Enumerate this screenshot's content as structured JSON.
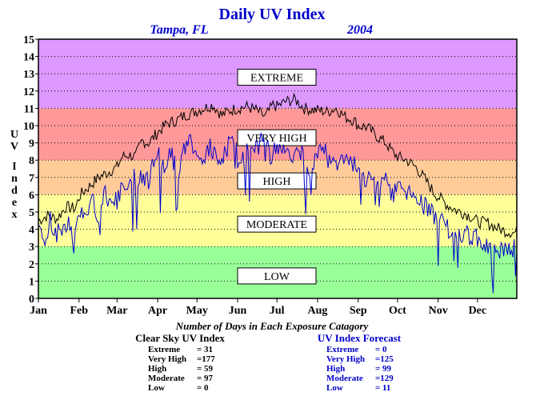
{
  "chart_data": {
    "type": "line",
    "title": "Daily UV Index",
    "location": "Tampa, FL",
    "year": "2004",
    "ylabel": "UV Index",
    "ylim": [
      0,
      15
    ],
    "yticks": [
      "0",
      "1",
      "2",
      "3",
      "4",
      "5",
      "6",
      "7",
      "8",
      "9",
      "10",
      "11",
      "12",
      "13",
      "14",
      "15"
    ],
    "xlim": [
      1,
      366
    ],
    "xticks": [
      {
        "label": "Jan",
        "day": 1
      },
      {
        "label": "Feb",
        "day": 32
      },
      {
        "label": "Mar",
        "day": 61
      },
      {
        "label": "Apr",
        "day": 92
      },
      {
        "label": "May",
        "day": 122
      },
      {
        "label": "Jun",
        "day": 153
      },
      {
        "label": "Jul",
        "day": 183
      },
      {
        "label": "Aug",
        "day": 214
      },
      {
        "label": "Sep",
        "day": 245
      },
      {
        "label": "Oct",
        "day": 275
      },
      {
        "label": "Nov",
        "day": 306
      },
      {
        "label": "Dec",
        "day": 336
      }
    ],
    "grid": true,
    "bands": [
      {
        "name": "LOW",
        "from": 0,
        "to": 3,
        "color": "#99ff99",
        "label_y": 1.3
      },
      {
        "name": "MODERATE",
        "from": 3,
        "to": 6,
        "color": "#ffff99",
        "label_y": 4.3
      },
      {
        "name": "HIGH",
        "from": 6,
        "to": 8,
        "color": "#ffcc99",
        "label_y": 6.8
      },
      {
        "name": "VERY HIGH",
        "from": 8,
        "to": 11,
        "color": "#ff9999",
        "label_y": 9.3
      },
      {
        "name": "EXTREME",
        "from": 11,
        "to": 15,
        "color": "#dd99ff",
        "label_y": 12.8
      }
    ],
    "series": [
      {
        "name": "Clear Sky UV Index",
        "color": "#000000",
        "points": [
          [
            1,
            4.5
          ],
          [
            8,
            4.8
          ],
          [
            15,
            4.6
          ],
          [
            22,
            5.3
          ],
          [
            29,
            5.2
          ],
          [
            33,
            6.0
          ],
          [
            40,
            6.5
          ],
          [
            47,
            7.0
          ],
          [
            54,
            7.3
          ],
          [
            61,
            7.6
          ],
          [
            65,
            8.2
          ],
          [
            70,
            8.3
          ],
          [
            75,
            8.2
          ],
          [
            80,
            9.1
          ],
          [
            85,
            9.0
          ],
          [
            92,
            9.6
          ],
          [
            99,
            10.1
          ],
          [
            106,
            10.3
          ],
          [
            113,
            10.6
          ],
          [
            120,
            10.8
          ],
          [
            127,
            11.0
          ],
          [
            134,
            11.2
          ],
          [
            141,
            10.6
          ],
          [
            148,
            10.9
          ],
          [
            153,
            11.0
          ],
          [
            160,
            11.1
          ],
          [
            167,
            10.9
          ],
          [
            174,
            10.5
          ],
          [
            180,
            11.2
          ],
          [
            183,
            11.1
          ],
          [
            190,
            11.4
          ],
          [
            197,
            11.5
          ],
          [
            204,
            11.0
          ],
          [
            211,
            10.9
          ],
          [
            214,
            10.9
          ],
          [
            221,
            10.8
          ],
          [
            228,
            11.0
          ],
          [
            235,
            10.5
          ],
          [
            242,
            10.3
          ],
          [
            245,
            10.0
          ],
          [
            252,
            9.9
          ],
          [
            259,
            9.4
          ],
          [
            266,
            9.0
          ],
          [
            272,
            8.4
          ],
          [
            275,
            8.2
          ],
          [
            282,
            8.0
          ],
          [
            289,
            7.6
          ],
          [
            296,
            6.9
          ],
          [
            303,
            6.1
          ],
          [
            306,
            5.9
          ],
          [
            313,
            5.4
          ],
          [
            320,
            5.1
          ],
          [
            327,
            4.9
          ],
          [
            334,
            4.6
          ],
          [
            336,
            4.4
          ],
          [
            343,
            4.4
          ],
          [
            350,
            4.1
          ],
          [
            357,
            3.9
          ],
          [
            364,
            3.8
          ],
          [
            366,
            3.9
          ]
        ]
      },
      {
        "name": "UV Index Forecast",
        "color": "#0000cc",
        "points": [
          [
            1,
            4.0
          ],
          [
            6,
            3.2
          ],
          [
            10,
            4.5
          ],
          [
            14,
            3.6
          ],
          [
            19,
            4.1
          ],
          [
            24,
            4.4
          ],
          [
            28,
            3.0
          ],
          [
            32,
            4.8
          ],
          [
            37,
            5.3
          ],
          [
            42,
            5.6
          ],
          [
            47,
            4.8
          ],
          [
            51,
            6.1
          ],
          [
            56,
            5.8
          ],
          [
            61,
            5.6
          ],
          [
            66,
            6.5
          ],
          [
            70,
            6.9
          ],
          [
            75,
            7.0
          ],
          [
            80,
            6.8
          ],
          [
            86,
            7.3
          ],
          [
            92,
            8.4
          ],
          [
            97,
            7.6
          ],
          [
            102,
            8.6
          ],
          [
            107,
            7.1
          ],
          [
            112,
            8.7
          ],
          [
            117,
            9.1
          ],
          [
            122,
            8.6
          ],
          [
            127,
            7.7
          ],
          [
            132,
            8.8
          ],
          [
            137,
            7.9
          ],
          [
            142,
            8.4
          ],
          [
            147,
            9.0
          ],
          [
            153,
            8.5
          ],
          [
            158,
            8.2
          ],
          [
            163,
            9.0
          ],
          [
            168,
            8.6
          ],
          [
            173,
            9.3
          ],
          [
            178,
            8.3
          ],
          [
            183,
            8.9
          ],
          [
            188,
            8.6
          ],
          [
            193,
            8.0
          ],
          [
            198,
            8.8
          ],
          [
            203,
            8.1
          ],
          [
            208,
            7.6
          ],
          [
            214,
            8.2
          ],
          [
            219,
            8.6
          ],
          [
            224,
            7.7
          ],
          [
            229,
            8.4
          ],
          [
            234,
            8.1
          ],
          [
            240,
            7.9
          ],
          [
            245,
            7.3
          ],
          [
            250,
            7.0
          ],
          [
            255,
            7.1
          ],
          [
            260,
            6.6
          ],
          [
            266,
            6.9
          ],
          [
            270,
            6.0
          ],
          [
            275,
            6.4
          ],
          [
            280,
            6.6
          ],
          [
            285,
            6.1
          ],
          [
            290,
            5.9
          ],
          [
            295,
            5.4
          ],
          [
            300,
            5.0
          ],
          [
            306,
            4.7
          ],
          [
            311,
            4.3
          ],
          [
            316,
            3.9
          ],
          [
            321,
            3.7
          ],
          [
            326,
            3.8
          ],
          [
            331,
            3.5
          ],
          [
            336,
            3.6
          ],
          [
            341,
            3.3
          ],
          [
            346,
            3.1
          ],
          [
            351,
            3.0
          ],
          [
            356,
            2.7
          ],
          [
            361,
            2.8
          ],
          [
            366,
            3.2
          ]
        ]
      }
    ],
    "summary_title": "Number of Days in Each Exposure Catagory",
    "tables": [
      {
        "title": "Clear Sky UV Index",
        "color": "#000000",
        "rows": [
          {
            "label": "Extreme",
            "value": "= 31"
          },
          {
            "label": "Very High",
            "value": "=177"
          },
          {
            "label": "High",
            "value": "= 59"
          },
          {
            "label": "Moderate",
            "value": "= 97"
          },
          {
            "label": "Low",
            "value": "= 0"
          }
        ]
      },
      {
        "title": "UV Index Forecast",
        "color": "#0000cc",
        "rows": [
          {
            "label": "Extreme",
            "value": "= 0"
          },
          {
            "label": "Very High",
            "value": "=125"
          },
          {
            "label": "High",
            "value": "= 99"
          },
          {
            "label": "Moderate",
            "value": "=129"
          },
          {
            "label": "Low",
            "value": "= 11"
          }
        ]
      }
    ]
  }
}
